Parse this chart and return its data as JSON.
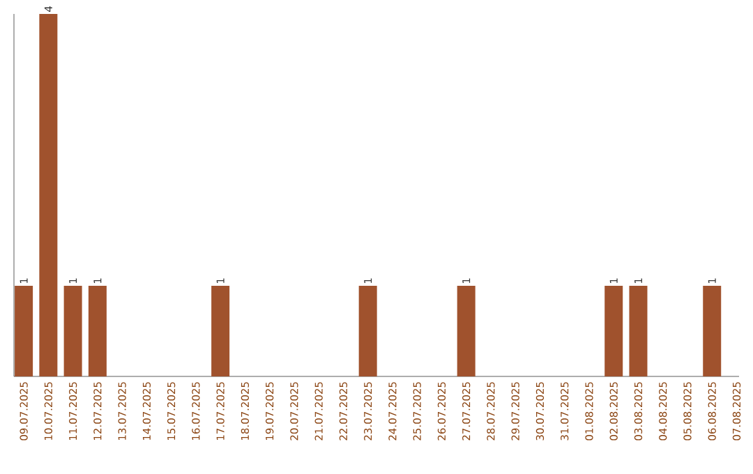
{
  "chart_data": {
    "type": "bar",
    "categories": [
      "09.07.2025",
      "10.07.2025",
      "11.07.2025",
      "12.07.2025",
      "13.07.2025",
      "14.07.2025",
      "15.07.2025",
      "16.07.2025",
      "17.07.2025",
      "18.07.2025",
      "19.07.2025",
      "20.07.2025",
      "21.07.2025",
      "22.07.2025",
      "23.07.2025",
      "24.07.2025",
      "25.07.2025",
      "26.07.2025",
      "27.07.2025",
      "28.07.2025",
      "29.07.2025",
      "30.07.2025",
      "31.07.2025",
      "01.08.2025",
      "02.08.2025",
      "03.08.2025",
      "04.08.2025",
      "05.08.2025",
      "06.08.2025",
      "07.08.2025"
    ],
    "values": [
      1,
      4,
      1,
      1,
      0,
      0,
      0,
      0,
      1,
      0,
      0,
      0,
      0,
      0,
      1,
      0,
      0,
      0,
      1,
      0,
      0,
      0,
      0,
      0,
      1,
      1,
      0,
      0,
      1,
      0
    ],
    "value_labels": [
      "1",
      "4",
      "1",
      "1",
      null,
      null,
      null,
      null,
      "1",
      null,
      null,
      null,
      null,
      null,
      "1",
      null,
      null,
      null,
      "1",
      null,
      null,
      null,
      null,
      null,
      "1",
      "1",
      null,
      null,
      "1",
      null
    ],
    "color": "#a0522d"
  }
}
